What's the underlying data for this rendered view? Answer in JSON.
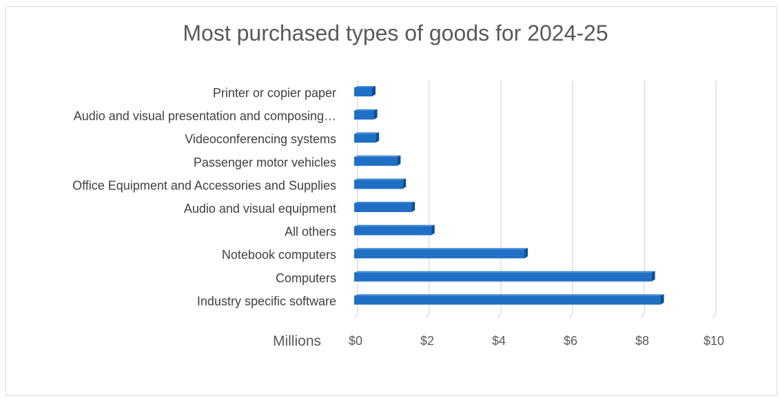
{
  "chart_data": {
    "type": "bar",
    "orientation": "horizontal",
    "title": "Most purchased types of goods for 2024-25",
    "categories": [
      "Printer or copier paper",
      "Audio and visual presentation and composing…",
      "Videoconferencing systems",
      "Passenger motor vehicles",
      "Office Equipment and Accessories and Supplies",
      "Audio and visual equipment",
      "All others",
      "Notebook computers",
      "Computers",
      "Industry specific software"
    ],
    "values": [
      0.5,
      0.55,
      0.6,
      1.2,
      1.35,
      1.6,
      2.15,
      4.75,
      8.3,
      8.55
    ],
    "xlim": [
      0,
      10
    ],
    "x_ticks": [
      "$0",
      "$2",
      "$4",
      "$6",
      "$8",
      "$10"
    ],
    "x_tick_values": [
      0,
      2,
      4,
      6,
      8,
      10
    ],
    "units_label": "Millions",
    "grid": true,
    "bar_color": "#1f6fc5",
    "bar_dark_color": "#0d4f96",
    "grid_color": "#d9d9d9"
  }
}
